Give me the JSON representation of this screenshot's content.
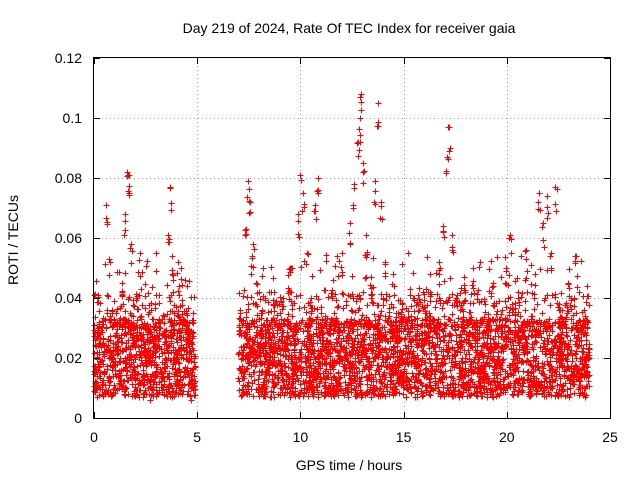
{
  "chart_data": {
    "type": "scatter",
    "title": "Day 219 of 2024, Rate Of TEC Index for receiver gaia",
    "xlabel": "GPS time / hours",
    "ylabel": "ROTI / TECUs",
    "xlim": [
      0,
      25
    ],
    "ylim": [
      0,
      0.12
    ],
    "x_ticks": [
      0,
      5,
      10,
      15,
      20,
      25
    ],
    "x_tick_labels": [
      "0",
      "5",
      "10",
      "15",
      "20",
      "25"
    ],
    "y_ticks": [
      0,
      0.02,
      0.04,
      0.06,
      0.08,
      0.1,
      0.12
    ],
    "y_tick_labels": [
      "0",
      "0.02",
      "0.04",
      "0.06",
      "0.08",
      "0.1",
      "0.12"
    ],
    "grid": true,
    "legend": "none",
    "marker": "plus",
    "color": "#ff0000",
    "data_coverage_hours": [
      [
        0.0,
        4.9
      ],
      [
        7.0,
        24.0
      ]
    ],
    "typical_band": [
      0.01,
      0.03
    ],
    "series": [
      {
        "points": [
          [
            0.05,
            0.015
          ],
          [
            0.15,
            0.022
          ],
          [
            0.3,
            0.028
          ],
          [
            0.45,
            0.018
          ],
          [
            0.6,
            0.071
          ],
          [
            0.75,
            0.053
          ],
          [
            0.9,
            0.025
          ],
          [
            1.05,
            0.035
          ],
          [
            1.2,
            0.019
          ],
          [
            1.35,
            0.045
          ],
          [
            1.5,
            0.068
          ],
          [
            1.6,
            0.082
          ],
          [
            1.7,
            0.081
          ],
          [
            1.8,
            0.058
          ],
          [
            1.95,
            0.026
          ],
          [
            2.1,
            0.04
          ],
          [
            2.25,
            0.055
          ],
          [
            2.4,
            0.021
          ],
          [
            2.55,
            0.03
          ],
          [
            2.7,
            0.012
          ],
          [
            2.85,
            0.025
          ],
          [
            3.0,
            0.018
          ],
          [
            3.15,
            0.033
          ],
          [
            3.3,
            0.015
          ],
          [
            3.45,
            0.028
          ],
          [
            3.6,
            0.061
          ],
          [
            3.7,
            0.077
          ],
          [
            3.8,
            0.054
          ],
          [
            3.95,
            0.02
          ],
          [
            4.1,
            0.044
          ],
          [
            4.25,
            0.03
          ],
          [
            4.4,
            0.017
          ],
          [
            4.55,
            0.025
          ],
          [
            4.7,
            0.013
          ],
          [
            4.85,
            0.02
          ],
          [
            7.05,
            0.035
          ],
          [
            7.2,
            0.02
          ],
          [
            7.35,
            0.063
          ],
          [
            7.45,
            0.079
          ],
          [
            7.55,
            0.072
          ],
          [
            7.7,
            0.058
          ],
          [
            7.85,
            0.045
          ],
          [
            8.0,
            0.028
          ],
          [
            8.15,
            0.036
          ],
          [
            8.3,
            0.019
          ],
          [
            8.5,
            0.024
          ],
          [
            8.7,
            0.042
          ],
          [
            8.9,
            0.031
          ],
          [
            9.1,
            0.016
          ],
          [
            9.3,
            0.027
          ],
          [
            9.5,
            0.05
          ],
          [
            9.7,
            0.022
          ],
          [
            9.9,
            0.068
          ],
          [
            10.0,
            0.081
          ],
          [
            10.15,
            0.075
          ],
          [
            10.3,
            0.055
          ],
          [
            10.5,
            0.04
          ],
          [
            10.7,
            0.071
          ],
          [
            10.85,
            0.08
          ],
          [
            11.0,
            0.035
          ],
          [
            11.2,
            0.012
          ],
          [
            11.4,
            0.03
          ],
          [
            11.6,
            0.046
          ],
          [
            11.8,
            0.021
          ],
          [
            12.0,
            0.055
          ],
          [
            12.2,
            0.039
          ],
          [
            12.4,
            0.065
          ],
          [
            12.6,
            0.078
          ],
          [
            12.8,
            0.092
          ],
          [
            12.9,
            0.1
          ],
          [
            12.95,
            0.108
          ],
          [
            13.05,
            0.085
          ],
          [
            13.2,
            0.061
          ],
          [
            13.4,
            0.047
          ],
          [
            13.6,
            0.079
          ],
          [
            13.75,
            0.105
          ],
          [
            13.9,
            0.072
          ],
          [
            14.1,
            0.052
          ],
          [
            14.3,
            0.034
          ],
          [
            14.5,
            0.048
          ],
          [
            14.7,
            0.022
          ],
          [
            14.9,
            0.038
          ],
          [
            15.1,
            0.015
          ],
          [
            15.3,
            0.029
          ],
          [
            15.5,
            0.018
          ],
          [
            15.7,
            0.041
          ],
          [
            15.9,
            0.026
          ],
          [
            16.1,
            0.035
          ],
          [
            16.3,
            0.048
          ],
          [
            16.5,
            0.03
          ],
          [
            16.7,
            0.052
          ],
          [
            16.9,
            0.064
          ],
          [
            17.1,
            0.087
          ],
          [
            17.2,
            0.097
          ],
          [
            17.35,
            0.061
          ],
          [
            17.55,
            0.04
          ],
          [
            17.75,
            0.028
          ],
          [
            17.95,
            0.047
          ],
          [
            18.15,
            0.033
          ],
          [
            18.35,
            0.05
          ],
          [
            18.55,
            0.024
          ],
          [
            18.75,
            0.039
          ],
          [
            18.95,
            0.018
          ],
          [
            19.15,
            0.031
          ],
          [
            19.35,
            0.045
          ],
          [
            19.55,
            0.022
          ],
          [
            19.75,
            0.036
          ],
          [
            19.95,
            0.05
          ],
          [
            20.15,
            0.061
          ],
          [
            20.35,
            0.028
          ],
          [
            20.55,
            0.042
          ],
          [
            20.75,
            0.019
          ],
          [
            20.95,
            0.056
          ],
          [
            21.15,
            0.034
          ],
          [
            21.35,
            0.048
          ],
          [
            21.55,
            0.075
          ],
          [
            21.75,
            0.065
          ],
          [
            21.95,
            0.074
          ],
          [
            22.15,
            0.055
          ],
          [
            22.35,
            0.077
          ],
          [
            22.55,
            0.038
          ],
          [
            22.75,
            0.025
          ],
          [
            22.95,
            0.045
          ],
          [
            23.15,
            0.019
          ],
          [
            23.35,
            0.054
          ],
          [
            23.55,
            0.03
          ],
          [
            23.75,
            0.016
          ],
          [
            23.95,
            0.022
          ]
        ]
      }
    ]
  }
}
